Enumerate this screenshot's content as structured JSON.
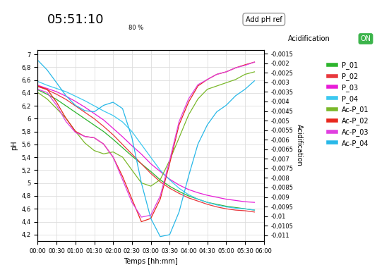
{
  "chart_data": {
    "type": "line",
    "annotations": [
      "05:51:10",
      "80 %",
      "Add pH ref",
      "Acidification",
      "ON"
    ],
    "x_label": "Temps [hh:mm]",
    "y_label": "pH",
    "y2_label": "Acidification",
    "x": [
      0,
      0.25,
      0.5,
      0.75,
      1,
      1.25,
      1.5,
      1.75,
      2,
      2.25,
      2.5,
      2.75,
      3,
      3.25,
      3.5,
      3.75,
      4,
      4.25,
      4.5,
      4.75,
      5,
      5.25,
      5.5,
      5.75
    ],
    "xlim": [
      0,
      6
    ],
    "xticks": [
      {
        "value": 0,
        "label": "00:00"
      },
      {
        "value": 0.5,
        "label": "00:30"
      },
      {
        "value": 1,
        "label": "01:00"
      },
      {
        "value": 1.5,
        "label": "01:30"
      },
      {
        "value": 2,
        "label": "02:00"
      },
      {
        "value": 2.5,
        "label": "02:30"
      },
      {
        "value": 3,
        "label": "03:00"
      },
      {
        "value": 3.5,
        "label": "03:30"
      },
      {
        "value": 4,
        "label": "04:00"
      },
      {
        "value": 4.5,
        "label": "04:30"
      },
      {
        "value": 5,
        "label": "05:00"
      },
      {
        "value": 5.5,
        "label": "05:30"
      },
      {
        "value": 6,
        "label": "06:00"
      }
    ],
    "ylim": [
      4.1,
      7.07
    ],
    "yticks": [
      {
        "value": 4.2,
        "label": "4,2"
      },
      {
        "value": 4.4,
        "label": "4,4"
      },
      {
        "value": 4.6,
        "label": "4,6"
      },
      {
        "value": 4.8,
        "label": "4,8"
      },
      5,
      {
        "value": 5.2,
        "label": "5,2"
      },
      {
        "value": 5.4,
        "label": "5,4"
      },
      {
        "value": 5.6,
        "label": "5,6"
      },
      {
        "value": 5.8,
        "label": "5,8"
      },
      6,
      {
        "value": 6.2,
        "label": "6,2"
      },
      {
        "value": 6.4,
        "label": "6,4"
      },
      {
        "value": 6.6,
        "label": "6,6"
      },
      {
        "value": 6.8,
        "label": "6,8"
      },
      7
    ],
    "y2lim": [
      -0.0113,
      -0.0013
    ],
    "y2ticks": [
      {
        "value": -0.0015,
        "label": "-0,0015"
      },
      {
        "value": -0.002,
        "label": "-0,002"
      },
      {
        "value": -0.0025,
        "label": "-0,0025"
      },
      {
        "value": -0.003,
        "label": "-0,003"
      },
      {
        "value": -0.0035,
        "label": "-0,0035"
      },
      {
        "value": -0.004,
        "label": "-0,004"
      },
      {
        "value": -0.0045,
        "label": "-0,0045"
      },
      {
        "value": -0.005,
        "label": "-0,005"
      },
      {
        "value": -0.0055,
        "label": "-0,0055"
      },
      {
        "value": -0.006,
        "label": "-0,006"
      },
      {
        "value": -0.0065,
        "label": "-0,0065"
      },
      {
        "value": -0.007,
        "label": "-0,007"
      },
      {
        "value": -0.0075,
        "label": "-0,0075"
      },
      {
        "value": -0.008,
        "label": "-0,008"
      },
      {
        "value": -0.0085,
        "label": "-0,0085"
      },
      {
        "value": -0.009,
        "label": "-0,009"
      },
      {
        "value": -0.0095,
        "label": "-0,0095"
      },
      {
        "value": -0.01,
        "label": "-0,01"
      },
      {
        "value": -0.0105,
        "label": "-0,0105"
      },
      {
        "value": -0.011,
        "label": "-0,011"
      }
    ],
    "grid": true,
    "legend": "upper right",
    "series": [
      {
        "name": "P_01",
        "color": "#2db52d",
        "values": [
          6.45,
          6.38,
          6.3,
          6.2,
          6.1,
          6.0,
          5.9,
          5.8,
          5.68,
          5.55,
          5.42,
          5.3,
          5.18,
          5.05,
          4.95,
          4.87,
          4.8,
          4.75,
          4.7,
          4.67,
          4.64,
          4.62,
          4.6,
          4.58
        ]
      },
      {
        "name": "P_02",
        "color": "#e8383d",
        "values": [
          6.5,
          6.45,
          6.38,
          6.3,
          6.2,
          6.1,
          6.0,
          5.88,
          5.75,
          5.6,
          5.45,
          5.3,
          5.15,
          5.02,
          4.92,
          4.84,
          4.77,
          4.72,
          4.67,
          4.63,
          4.6,
          4.58,
          4.57,
          4.55
        ]
      },
      {
        "name": "P_03",
        "color": "#e81cd8",
        "values": [
          6.52,
          6.47,
          6.42,
          6.35,
          6.27,
          6.18,
          6.08,
          5.98,
          5.85,
          5.72,
          5.58,
          5.45,
          5.3,
          5.18,
          5.06,
          4.97,
          4.9,
          4.85,
          4.81,
          4.78,
          4.75,
          4.73,
          4.71,
          4.7
        ]
      },
      {
        "name": "P_04",
        "color": "#3cc8f0",
        "values": [
          6.58,
          6.52,
          6.47,
          6.42,
          6.35,
          6.28,
          6.2,
          6.12,
          6.05,
          5.95,
          5.8,
          5.6,
          5.4,
          5.2,
          5.05,
          4.92,
          4.82,
          4.75,
          4.7,
          4.66,
          4.63,
          4.61,
          4.6,
          4.58
        ]
      },
      {
        "name": "Ac-P_01",
        "color": "#7ab82a",
        "axis": "y2",
        "values": [
          -0.00353,
          -0.00387,
          -0.00437,
          -0.00488,
          -0.00556,
          -0.00617,
          -0.00657,
          -0.00674,
          -0.00664,
          -0.00691,
          -0.00759,
          -0.00826,
          -0.00843,
          -0.00809,
          -0.00708,
          -0.0059,
          -0.00471,
          -0.00387,
          -0.00336,
          -0.00319,
          -0.00302,
          -0.00285,
          -0.00258,
          -0.00245
        ]
      },
      {
        "name": "Ac-P_02",
        "color": "#e8281e",
        "axis": "y2",
        "values": [
          -0.00319,
          -0.00336,
          -0.00404,
          -0.00488,
          -0.00556,
          -0.00583,
          -0.0059,
          -0.00623,
          -0.00691,
          -0.00792,
          -0.00911,
          -0.01029,
          -0.01012,
          -0.00911,
          -0.00725,
          -0.00522,
          -0.00404,
          -0.00319,
          -0.00285,
          -0.00258,
          -0.00245,
          -0.00224,
          -0.00208,
          -0.00194
        ]
      },
      {
        "name": "Ac-P_03",
        "color": "#e040e0",
        "axis": "y2",
        "values": [
          -0.00336,
          -0.00353,
          -0.0042,
          -0.00505,
          -0.00562,
          -0.00583,
          -0.0059,
          -0.00623,
          -0.00691,
          -0.00809,
          -0.00928,
          -0.01005,
          -0.00995,
          -0.00894,
          -0.00708,
          -0.00505,
          -0.00387,
          -0.00312,
          -0.00285,
          -0.00258,
          -0.00245,
          -0.00224,
          -0.00211,
          -0.00194
        ]
      },
      {
        "name": "Ac-P_04",
        "color": "#28b8e8",
        "axis": "y2",
        "values": [
          -0.00184,
          -0.00235,
          -0.00302,
          -0.0037,
          -0.0042,
          -0.00448,
          -0.00454,
          -0.0042,
          -0.00404,
          -0.00437,
          -0.0059,
          -0.00826,
          -0.01012,
          -0.01107,
          -0.01097,
          -0.00978,
          -0.00792,
          -0.00623,
          -0.00522,
          -0.00454,
          -0.0042,
          -0.0037,
          -0.00336,
          -0.00292
        ]
      }
    ]
  }
}
